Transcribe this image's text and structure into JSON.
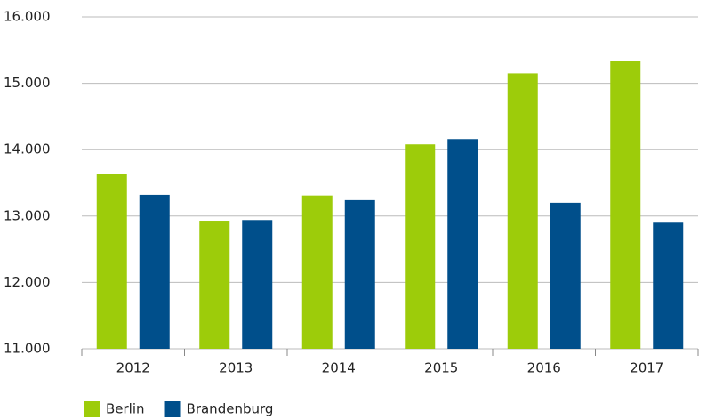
{
  "chart_data": {
    "type": "bar",
    "categories": [
      "2012",
      "2013",
      "2014",
      "2015",
      "2016",
      "2017"
    ],
    "series": [
      {
        "name": "Berlin",
        "color": "#9dcc0a",
        "values": [
          13640,
          12930,
          13310,
          14080,
          15150,
          15330
        ]
      },
      {
        "name": "Brandenburg",
        "color": "#004f8b",
        "values": [
          13320,
          12940,
          13240,
          14160,
          13200,
          12900
        ]
      }
    ],
    "ylim": [
      11000,
      16000
    ],
    "yticks": [
      {
        "value": 11000,
        "label": "11.000"
      },
      {
        "value": 12000,
        "label": "12.000"
      },
      {
        "value": 13000,
        "label": "13.000"
      },
      {
        "value": 14000,
        "label": "14.000"
      },
      {
        "value": 15000,
        "label": "15.000"
      },
      {
        "value": 16000,
        "label": "16.000"
      }
    ],
    "grid": true,
    "legend": "bottom-left"
  }
}
